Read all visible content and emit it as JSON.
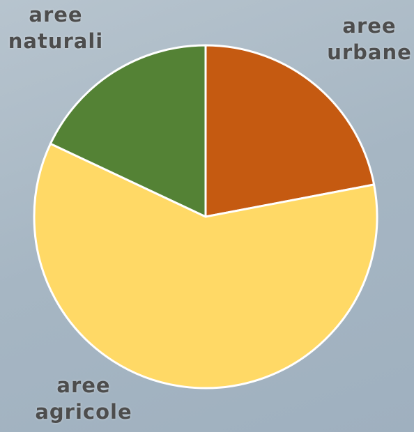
{
  "chart_data": {
    "type": "pie",
    "categories": [
      "aree urbane",
      "aree agricole",
      "aree naturali"
    ],
    "values": [
      22,
      60,
      18
    ],
    "colors": [
      "#c55a11",
      "#ffd966",
      "#548235"
    ]
  }
}
